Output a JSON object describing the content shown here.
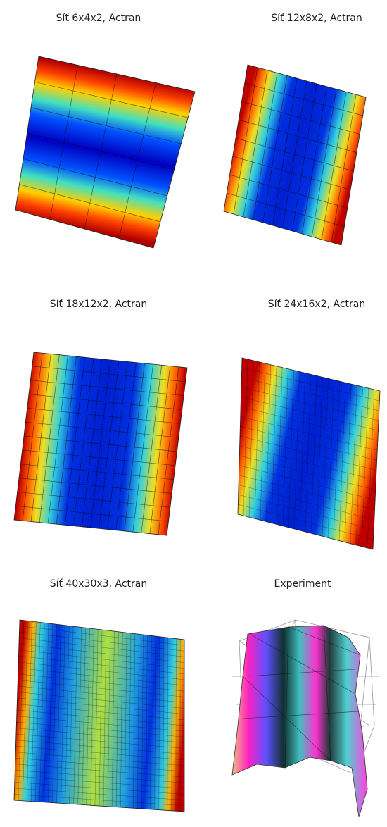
{
  "panels": [
    {
      "title": "Síť 6x4x2, Actran"
    },
    {
      "title": "Síť 12x8x2, Actran"
    },
    {
      "title": "Síť 18x12x2, Actran"
    },
    {
      "title": "Síť 24x16x2, Actran"
    },
    {
      "title": "Síť 40x30x3, Actran"
    },
    {
      "title": "Experiment"
    }
  ]
}
